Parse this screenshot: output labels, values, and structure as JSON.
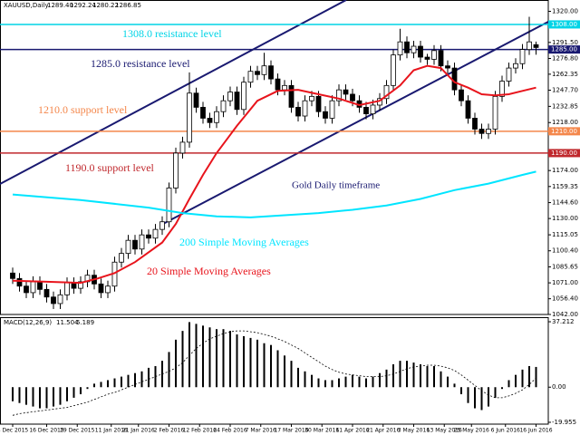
{
  "chart_data": [
    {
      "type": "candlestick",
      "title": "XAUUSD,Daily",
      "ohlc_labels": [
        "1289.40",
        "1292.24",
        "1280.22",
        "1286.85"
      ],
      "x": [
        0,
        2,
        4,
        6,
        8,
        10,
        12,
        14,
        16,
        18,
        20,
        22,
        24,
        26,
        28,
        30,
        32,
        34,
        36,
        38,
        40,
        42,
        44,
        46,
        48,
        50,
        52,
        54,
        56,
        58,
        60,
        62,
        64,
        66,
        68,
        70,
        72,
        74,
        76,
        78,
        80,
        82,
        84,
        86,
        88,
        90,
        92,
        94,
        96,
        98,
        100,
        102,
        104,
        106,
        108,
        110,
        112,
        114,
        116,
        118,
        120,
        122,
        124,
        126,
        128,
        130,
        132,
        134,
        136,
        138,
        140,
        142,
        144,
        146,
        148,
        150,
        152,
        154
      ],
      "open": [
        1080,
        1075,
        1068,
        1062,
        1072,
        1065,
        1058,
        1052,
        1060,
        1071,
        1066,
        1072,
        1078,
        1070,
        1062,
        1068,
        1090,
        1098,
        1110,
        1102,
        1115,
        1112,
        1120,
        1127,
        1158,
        1190,
        1200,
        1245,
        1232,
        1222,
        1218,
        1228,
        1238,
        1246,
        1230,
        1255,
        1265,
        1262,
        1270,
        1258,
        1248,
        1252,
        1232,
        1224,
        1238,
        1242,
        1228,
        1222,
        1238,
        1248,
        1244,
        1238,
        1232,
        1226,
        1234,
        1240,
        1252,
        1280,
        1292,
        1282,
        1288,
        1278,
        1276,
        1284,
        1270,
        1268,
        1248,
        1238,
        1222,
        1212,
        1208,
        1212,
        1242,
        1256,
        1268,
        1272,
        1285,
        1289.4
      ],
      "high": [
        1085,
        1080,
        1073,
        1077,
        1077,
        1070,
        1063,
        1065,
        1076,
        1076,
        1077,
        1083,
        1083,
        1075,
        1073,
        1095,
        1103,
        1115,
        1115,
        1120,
        1120,
        1125,
        1132,
        1163,
        1195,
        1205,
        1264,
        1250,
        1237,
        1227,
        1233,
        1243,
        1251,
        1251,
        1260,
        1270,
        1270,
        1282,
        1275,
        1263,
        1257,
        1257,
        1237,
        1243,
        1247,
        1247,
        1233,
        1243,
        1253,
        1253,
        1249,
        1243,
        1237,
        1239,
        1245,
        1257,
        1285,
        1304,
        1297,
        1293,
        1293,
        1281,
        1289,
        1289,
        1275,
        1273,
        1253,
        1243,
        1227,
        1217,
        1217,
        1247,
        1261,
        1273,
        1277,
        1290,
        1315,
        1292.24
      ],
      "low": [
        1070,
        1063,
        1057,
        1057,
        1060,
        1053,
        1047,
        1047,
        1055,
        1061,
        1061,
        1067,
        1065,
        1057,
        1057,
        1063,
        1085,
        1093,
        1097,
        1097,
        1107,
        1107,
        1115,
        1122,
        1153,
        1185,
        1195,
        1227,
        1217,
        1213,
        1213,
        1223,
        1233,
        1225,
        1225,
        1250,
        1257,
        1257,
        1253,
        1243,
        1243,
        1227,
        1219,
        1219,
        1233,
        1223,
        1217,
        1217,
        1233,
        1239,
        1233,
        1227,
        1221,
        1221,
        1229,
        1235,
        1247,
        1275,
        1277,
        1277,
        1273,
        1271,
        1271,
        1265,
        1263,
        1243,
        1233,
        1217,
        1207,
        1203,
        1203,
        1207,
        1237,
        1251,
        1263,
        1267,
        1280,
        1280.22
      ],
      "close": [
        1075,
        1068,
        1062,
        1072,
        1065,
        1058,
        1052,
        1060,
        1071,
        1066,
        1072,
        1078,
        1070,
        1062,
        1068,
        1090,
        1098,
        1110,
        1102,
        1115,
        1112,
        1120,
        1127,
        1158,
        1190,
        1200,
        1245,
        1232,
        1222,
        1218,
        1228,
        1238,
        1246,
        1230,
        1255,
        1265,
        1262,
        1270,
        1258,
        1248,
        1252,
        1232,
        1224,
        1238,
        1242,
        1228,
        1222,
        1238,
        1248,
        1244,
        1238,
        1232,
        1226,
        1234,
        1240,
        1252,
        1280,
        1292,
        1282,
        1288,
        1278,
        1276,
        1284,
        1270,
        1268,
        1248,
        1238,
        1222,
        1212,
        1208,
        1212,
        1242,
        1256,
        1268,
        1272,
        1285,
        1292,
        1286.85
      ],
      "xlim": [
        -3.73,
        157.6
      ],
      "xticks": [
        {
          "value": 0,
          "label": "4 Dec 2015"
        },
        {
          "value": 10,
          "label": "16 Dec 2015"
        },
        {
          "value": 19,
          "label": "29 Dec 2015"
        },
        {
          "value": 29,
          "label": "11 Jan 2016"
        },
        {
          "value": 37,
          "label": "21 Jan 2016"
        },
        {
          "value": 46,
          "label": "2 Feb 2016"
        },
        {
          "value": 55,
          "label": "12 Feb 2016"
        },
        {
          "value": 64,
          "label": "24 Feb 2016"
        },
        {
          "value": 73,
          "label": "7 Mar 2016"
        },
        {
          "value": 82,
          "label": "17 Mar 2016"
        },
        {
          "value": 91,
          "label": "30 Mar 2016"
        },
        {
          "value": 100,
          "label": "11 Apr 2016"
        },
        {
          "value": 109,
          "label": "21 Apr 2016"
        },
        {
          "value": 118,
          "label": "3 May 2016"
        },
        {
          "value": 127,
          "label": "13 May 2016"
        },
        {
          "value": 135,
          "label": "25 May 2016"
        },
        {
          "value": 145,
          "label": "6 Jun 2016"
        },
        {
          "value": 154,
          "label": "16 Jun 2016"
        }
      ],
      "ylim": [
        1042,
        1330.4
      ],
      "yticks": [
        {
          "value": 1320,
          "label": "1320.00"
        },
        {
          "value": 1291.5,
          "label": "1291.50"
        },
        {
          "value": 1276.8,
          "label": "1276.80"
        },
        {
          "value": 1262.35,
          "label": "1262.35"
        },
        {
          "value": 1247.7,
          "label": "1247.70"
        },
        {
          "value": 1232.85,
          "label": "1232.85"
        },
        {
          "value": 1218,
          "label": "1218.00"
        },
        {
          "value": 1174,
          "label": "1174.00"
        },
        {
          "value": 1159.35,
          "label": "1159.35"
        },
        {
          "value": 1144.6,
          "label": "1144.60"
        },
        {
          "value": 1130,
          "label": "1130.00"
        },
        {
          "value": 1115.05,
          "label": "1115.05"
        },
        {
          "value": 1100.4,
          "label": "1100.40"
        },
        {
          "value": 1085.65,
          "label": "1085.65"
        },
        {
          "value": 1071,
          "label": "1071.00"
        },
        {
          "value": 1056.4,
          "label": "1056.40"
        },
        {
          "value": 1042,
          "label": "1042.00"
        }
      ],
      "lines": [
        {
          "name": "20 Simple Moving Averages",
          "color": "#e8141c",
          "x": [
            0,
            10,
            20,
            25,
            30,
            36,
            44,
            48,
            52,
            56,
            60,
            66,
            72,
            78,
            84,
            90,
            96,
            102,
            108,
            114,
            118,
            122,
            126,
            130,
            134,
            138,
            142,
            146,
            150,
            154
          ],
          "values": [
            1073,
            1072,
            1071,
            1075,
            1080,
            1090,
            1108,
            1125,
            1148,
            1170,
            1190,
            1215,
            1238,
            1247,
            1248,
            1244,
            1240,
            1234,
            1238,
            1252,
            1266,
            1270,
            1268,
            1255,
            1250,
            1244,
            1243,
            1244,
            1247,
            1250
          ]
        },
        {
          "name": "200 Simple Moving Averages",
          "color": "#00e5ff",
          "x": [
            0,
            20,
            40,
            50,
            60,
            70,
            80,
            90,
            100,
            110,
            120,
            130,
            140,
            150,
            154
          ],
          "values": [
            1152,
            1147,
            1140,
            1135,
            1132,
            1131,
            1133,
            1135,
            1138,
            1142,
            1148,
            1156,
            1162,
            1170,
            1173
          ]
        }
      ],
      "levels": [
        {
          "value": 1308,
          "label": "1308.0 resistance level",
          "tag": "1308.00",
          "color": "#00d4e6"
        },
        {
          "value": 1285,
          "label": "1285.0 resistance level",
          "tag": "1285.00",
          "color": "#191970"
        },
        {
          "value": 1210,
          "label": "1210.0 support level",
          "tag": "1210.00",
          "color": "#f4874b"
        },
        {
          "value": 1190,
          "label": "1190.0 support level",
          "tag": "1190.00",
          "color": "#c0282d"
        }
      ],
      "annotation": "Gold Daily timeframe"
    },
    {
      "type": "macd",
      "title": "MACD(12,26,9)",
      "series": [
        {
          "name": "MACD",
          "color": "#000000",
          "values": [
            -8,
            -9,
            -10,
            -11,
            -12,
            -12,
            -11,
            -10,
            -8,
            -6,
            -4,
            -1,
            2,
            3,
            4,
            5,
            6,
            7,
            8,
            9,
            11,
            12,
            15,
            20,
            27,
            32,
            37,
            36,
            35,
            34,
            33,
            33,
            32,
            30,
            29,
            28,
            27,
            25,
            24,
            21,
            18,
            15,
            11,
            9,
            7,
            5,
            4,
            4,
            5,
            6,
            7,
            6,
            5,
            6,
            8,
            10,
            13,
            15,
            15,
            14,
            13,
            12,
            12,
            9,
            6,
            2,
            -4,
            -9,
            -12,
            -13,
            -11,
            -6,
            -1,
            4,
            7,
            10,
            12,
            11.504
          ]
        },
        {
          "name": "Signal",
          "color": "#000000",
          "values": [
            -16,
            -15,
            -14.5,
            -14,
            -13.5,
            -13,
            -12.5,
            -12,
            -11.5,
            -10.5,
            -9.5,
            -8.5,
            -7,
            -5.5,
            -4,
            -3,
            -1.5,
            0,
            1.5,
            3,
            4.5,
            6,
            7.5,
            9,
            11,
            14,
            18,
            22,
            25,
            27.5,
            29,
            30.5,
            31.5,
            32,
            32,
            31.5,
            31,
            30,
            29,
            27.5,
            26,
            24,
            22,
            19.5,
            17,
            14.5,
            12,
            10,
            8.5,
            7.5,
            7,
            6.5,
            6,
            6,
            6,
            6.5,
            7.5,
            9,
            10.5,
            11.5,
            12,
            12.5,
            12.5,
            12,
            11,
            9.5,
            7,
            4,
            1,
            -2,
            -4.5,
            -6,
            -6,
            -5,
            -3.5,
            -1.5,
            1.5,
            5.189
          ]
        }
      ],
      "ylim": [
        -21,
        39.8
      ],
      "yticks": [
        37.212,
        {
          "value": 0,
          "label": "0.00"
        },
        -19.955
      ]
    }
  ]
}
